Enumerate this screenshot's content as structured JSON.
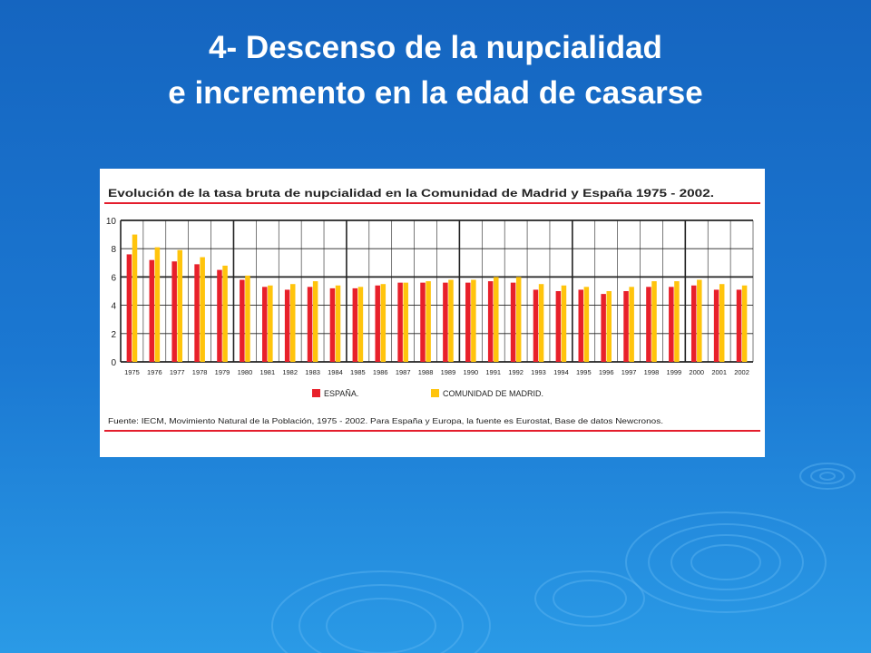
{
  "slide": {
    "title_line1": "4- Descenso de la nupcialidad",
    "title_line2": "e incremento en la edad de casarse"
  },
  "chart_data": {
    "type": "bar",
    "title": "Evolución de la tasa bruta de nupcialidad en la Comunidad de Madrid y España 1975 - 2002.",
    "xlabel": "",
    "ylabel": "",
    "ylim": [
      0,
      10
    ],
    "yticks": [
      0,
      2,
      4,
      6,
      8,
      10
    ],
    "grid": true,
    "legend_position": "bottom",
    "categories": [
      "1975",
      "1976",
      "1977",
      "1978",
      "1979",
      "1980",
      "1981",
      "1982",
      "1983",
      "1984",
      "1985",
      "1986",
      "1987",
      "1988",
      "1989",
      "1990",
      "1991",
      "1992",
      "1993",
      "1994",
      "1995",
      "1996",
      "1997",
      "1998",
      "1999",
      "2000",
      "2001",
      "2002"
    ],
    "series": [
      {
        "name": "ESPAÑA.",
        "color": "#e8202a",
        "values": [
          7.6,
          7.2,
          7.1,
          6.9,
          6.5,
          5.8,
          5.3,
          5.1,
          5.3,
          5.2,
          5.2,
          5.4,
          5.6,
          5.6,
          5.6,
          5.6,
          5.7,
          5.6,
          5.1,
          5.0,
          5.1,
          4.8,
          5.0,
          5.3,
          5.3,
          5.4,
          5.1,
          5.1
        ]
      },
      {
        "name": "COMUNIDAD DE MADRID.",
        "color": "#ffc40c",
        "values": [
          9.0,
          8.1,
          7.9,
          7.4,
          6.8,
          6.1,
          5.4,
          5.5,
          5.7,
          5.4,
          5.3,
          5.5,
          5.6,
          5.7,
          5.8,
          5.8,
          6.0,
          6.0,
          5.5,
          5.4,
          5.3,
          5.0,
          5.3,
          5.7,
          5.7,
          5.8,
          5.5,
          5.4
        ]
      }
    ],
    "source_note": "Fuente: IECM, Movimiento Natural de la Población, 1975 - 2002. Para España y Europa, la fuente es Eurostat, Base de datos Newcronos.",
    "colors": {
      "accent_line": "#e41d2c",
      "grid": "#222222"
    }
  }
}
